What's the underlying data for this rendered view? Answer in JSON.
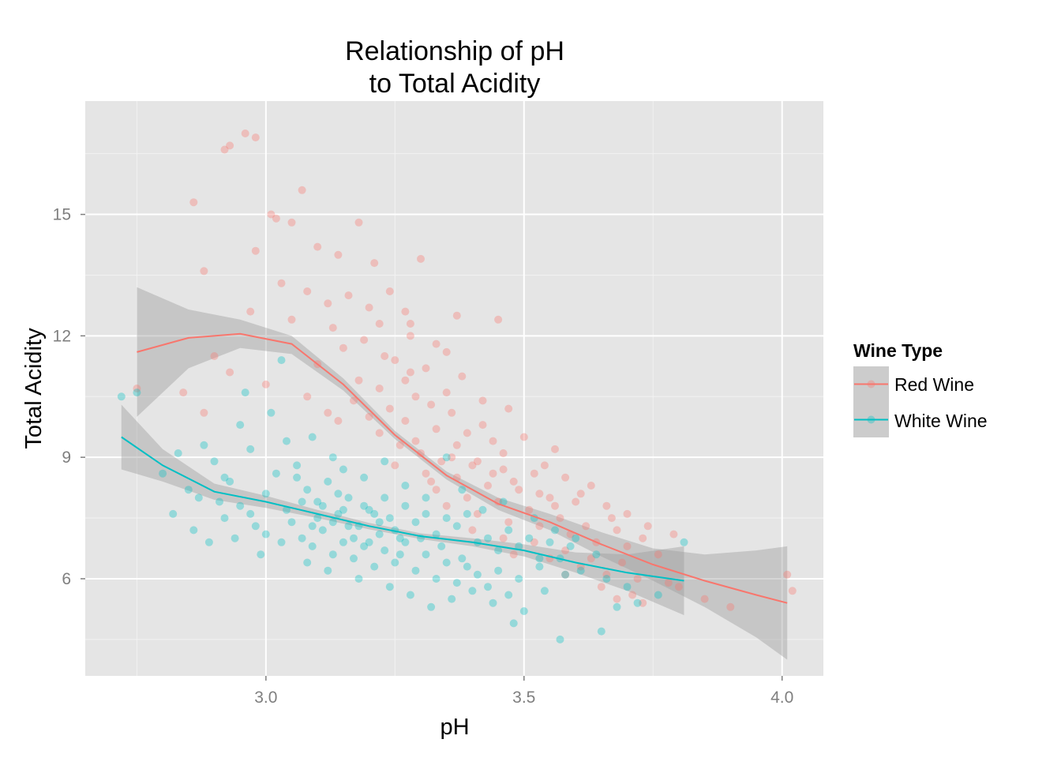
{
  "chart_data": {
    "type": "scatter",
    "title_lines": [
      "Relationship of pH",
      "to Total Acidity"
    ],
    "xlabel": "pH",
    "ylabel": "Total Acidity",
    "xlim": [
      2.65,
      4.08
    ],
    "ylim": [
      3.6,
      17.8
    ],
    "x_ticks": [
      {
        "value": 3.0,
        "label": "3.0"
      },
      {
        "value": 3.5,
        "label": "3.5"
      },
      {
        "value": 4.0,
        "label": "4.0"
      }
    ],
    "y_ticks": [
      {
        "value": 6,
        "label": "6"
      },
      {
        "value": 9,
        "label": "9"
      },
      {
        "value": 12,
        "label": "12"
      },
      {
        "value": 15,
        "label": "15"
      }
    ],
    "grid": true,
    "legend": {
      "title": "Wine Type",
      "position": "right"
    },
    "series": [
      {
        "name": "Red Wine",
        "color": "#F8766D",
        "smooth": {
          "x": [
            2.75,
            2.85,
            2.95,
            3.05,
            3.15,
            3.25,
            3.35,
            3.45,
            3.55,
            3.65,
            3.75,
            3.85,
            3.95,
            4.01
          ],
          "y": [
            11.6,
            11.95,
            12.05,
            11.8,
            10.8,
            9.55,
            8.55,
            7.85,
            7.4,
            6.85,
            6.35,
            5.95,
            5.6,
            5.4
          ],
          "lower": [
            10.0,
            11.2,
            11.7,
            11.55,
            10.65,
            9.45,
            8.45,
            7.7,
            7.2,
            6.55,
            5.95,
            5.3,
            4.55,
            4.0
          ],
          "upper": [
            13.2,
            12.65,
            12.4,
            12.0,
            10.95,
            9.65,
            8.65,
            8.0,
            7.6,
            7.15,
            6.75,
            6.6,
            6.7,
            6.8
          ]
        },
        "points": [
          [
            2.92,
            16.6
          ],
          [
            2.93,
            16.7
          ],
          [
            2.96,
            17.0
          ],
          [
            2.98,
            16.9
          ],
          [
            2.86,
            15.3
          ],
          [
            3.07,
            15.6
          ],
          [
            3.01,
            15.0
          ],
          [
            3.02,
            14.9
          ],
          [
            3.05,
            14.8
          ],
          [
            3.18,
            14.8
          ],
          [
            3.1,
            14.2
          ],
          [
            2.98,
            14.1
          ],
          [
            3.14,
            14.0
          ],
          [
            3.21,
            13.8
          ],
          [
            3.3,
            13.9
          ],
          [
            2.88,
            13.6
          ],
          [
            3.03,
            13.3
          ],
          [
            3.08,
            13.1
          ],
          [
            3.16,
            13.0
          ],
          [
            3.24,
            13.1
          ],
          [
            3.12,
            12.8
          ],
          [
            3.2,
            12.7
          ],
          [
            3.27,
            12.6
          ],
          [
            3.37,
            12.5
          ],
          [
            3.45,
            12.4
          ],
          [
            2.97,
            12.6
          ],
          [
            3.05,
            12.4
          ],
          [
            3.13,
            12.2
          ],
          [
            3.22,
            12.3
          ],
          [
            3.28,
            12.0
          ],
          [
            3.33,
            11.8
          ],
          [
            3.15,
            11.7
          ],
          [
            3.1,
            11.3
          ],
          [
            3.25,
            11.4
          ],
          [
            3.31,
            11.2
          ],
          [
            3.38,
            11.0
          ],
          [
            3.18,
            10.9
          ],
          [
            3.22,
            10.7
          ],
          [
            3.29,
            10.5
          ],
          [
            3.35,
            10.6
          ],
          [
            3.42,
            10.4
          ],
          [
            3.47,
            10.2
          ],
          [
            3.12,
            10.1
          ],
          [
            3.2,
            10.0
          ],
          [
            3.27,
            9.9
          ],
          [
            3.33,
            9.7
          ],
          [
            3.39,
            9.6
          ],
          [
            3.44,
            9.4
          ],
          [
            3.5,
            9.5
          ],
          [
            3.56,
            9.2
          ],
          [
            3.22,
            9.6
          ],
          [
            3.26,
            9.3
          ],
          [
            3.3,
            9.1
          ],
          [
            3.36,
            9.0
          ],
          [
            3.41,
            8.9
          ],
          [
            3.46,
            8.7
          ],
          [
            3.52,
            8.6
          ],
          [
            3.58,
            8.5
          ],
          [
            3.63,
            8.3
          ],
          [
            3.25,
            8.8
          ],
          [
            3.31,
            8.6
          ],
          [
            3.37,
            8.5
          ],
          [
            3.43,
            8.3
          ],
          [
            3.49,
            8.2
          ],
          [
            3.55,
            8.0
          ],
          [
            3.6,
            7.9
          ],
          [
            3.66,
            7.8
          ],
          [
            3.7,
            7.6
          ],
          [
            3.33,
            8.2
          ],
          [
            3.39,
            8.0
          ],
          [
            3.45,
            7.9
          ],
          [
            3.51,
            7.7
          ],
          [
            3.57,
            7.5
          ],
          [
            3.62,
            7.3
          ],
          [
            3.68,
            7.2
          ],
          [
            3.73,
            7.0
          ],
          [
            3.35,
            7.8
          ],
          [
            3.41,
            7.6
          ],
          [
            3.47,
            7.4
          ],
          [
            3.53,
            7.3
          ],
          [
            3.59,
            7.1
          ],
          [
            3.64,
            6.9
          ],
          [
            3.7,
            6.8
          ],
          [
            3.76,
            6.6
          ],
          [
            3.4,
            7.2
          ],
          [
            3.46,
            7.0
          ],
          [
            3.52,
            6.9
          ],
          [
            3.58,
            6.7
          ],
          [
            3.63,
            6.5
          ],
          [
            3.69,
            6.4
          ],
          [
            3.48,
            6.6
          ],
          [
            3.55,
            6.5
          ],
          [
            3.61,
            6.3
          ],
          [
            3.66,
            6.1
          ],
          [
            3.72,
            6.0
          ],
          [
            3.78,
            5.9
          ],
          [
            3.58,
            6.1
          ],
          [
            3.65,
            5.8
          ],
          [
            3.71,
            5.6
          ],
          [
            3.8,
            5.8
          ],
          [
            3.85,
            5.5
          ],
          [
            3.9,
            5.3
          ],
          [
            3.73,
            5.4
          ],
          [
            3.68,
            5.5
          ],
          [
            4.01,
            6.1
          ],
          [
            4.02,
            5.7
          ],
          [
            3.19,
            11.9
          ],
          [
            3.23,
            11.5
          ],
          [
            3.28,
            11.1
          ],
          [
            3.17,
            10.4
          ],
          [
            3.24,
            10.2
          ],
          [
            3.32,
            10.3
          ],
          [
            3.14,
            9.9
          ],
          [
            3.29,
            9.4
          ],
          [
            3.34,
            8.9
          ],
          [
            3.4,
            8.8
          ],
          [
            3.44,
            8.6
          ],
          [
            3.48,
            8.4
          ],
          [
            3.53,
            8.1
          ],
          [
            3.56,
            7.8
          ],
          [
            2.9,
            11.5
          ],
          [
            2.84,
            10.6
          ],
          [
            2.88,
            10.1
          ],
          [
            2.75,
            10.7
          ],
          [
            2.93,
            11.1
          ],
          [
            3.0,
            10.8
          ],
          [
            3.08,
            10.5
          ],
          [
            3.27,
            10.9
          ],
          [
            3.36,
            10.1
          ],
          [
            3.42,
            9.8
          ],
          [
            3.37,
            9.3
          ],
          [
            3.32,
            8.4
          ],
          [
            3.46,
            9.1
          ],
          [
            3.54,
            8.8
          ],
          [
            3.61,
            8.1
          ],
          [
            3.67,
            7.5
          ],
          [
            3.74,
            7.3
          ],
          [
            3.79,
            7.1
          ],
          [
            3.28,
            12.3
          ],
          [
            3.35,
            11.6
          ]
        ]
      },
      {
        "name": "White Wine",
        "color": "#00BFC4",
        "smooth": {
          "x": [
            2.72,
            2.8,
            2.9,
            3.0,
            3.1,
            3.2,
            3.3,
            3.4,
            3.5,
            3.6,
            3.7,
            3.81
          ],
          "y": [
            9.5,
            8.8,
            8.15,
            7.9,
            7.6,
            7.3,
            7.05,
            6.9,
            6.7,
            6.4,
            6.15,
            5.95
          ],
          "lower": [
            8.7,
            8.4,
            7.95,
            7.75,
            7.5,
            7.22,
            6.98,
            6.8,
            6.55,
            6.15,
            5.7,
            5.1
          ],
          "upper": [
            10.3,
            9.2,
            8.35,
            8.05,
            7.7,
            7.38,
            7.12,
            7.0,
            6.85,
            6.65,
            6.6,
            6.8
          ]
        },
        "points": [
          [
            2.72,
            10.5
          ],
          [
            2.75,
            10.6
          ],
          [
            2.8,
            8.6
          ],
          [
            2.83,
            9.1
          ],
          [
            2.85,
            8.2
          ],
          [
            2.88,
            9.3
          ],
          [
            2.9,
            8.9
          ],
          [
            2.92,
            8.5
          ],
          [
            2.95,
            9.8
          ],
          [
            2.97,
            9.2
          ],
          [
            2.82,
            7.6
          ],
          [
            2.86,
            7.2
          ],
          [
            2.89,
            6.9
          ],
          [
            2.92,
            7.5
          ],
          [
            2.95,
            7.8
          ],
          [
            2.98,
            7.3
          ],
          [
            3.0,
            8.1
          ],
          [
            3.02,
            8.6
          ],
          [
            3.04,
            9.4
          ],
          [
            3.06,
            8.8
          ],
          [
            3.08,
            8.2
          ],
          [
            3.1,
            7.9
          ],
          [
            3.12,
            8.4
          ],
          [
            3.14,
            7.6
          ],
          [
            3.16,
            8.0
          ],
          [
            3.18,
            7.3
          ],
          [
            3.2,
            7.7
          ],
          [
            3.22,
            7.1
          ],
          [
            3.24,
            7.5
          ],
          [
            3.26,
            7.0
          ],
          [
            3.05,
            7.4
          ],
          [
            3.07,
            7.0
          ],
          [
            3.09,
            6.8
          ],
          [
            3.11,
            7.2
          ],
          [
            3.13,
            6.6
          ],
          [
            3.15,
            6.9
          ],
          [
            3.17,
            6.5
          ],
          [
            3.19,
            6.8
          ],
          [
            3.21,
            6.3
          ],
          [
            3.23,
            6.7
          ],
          [
            3.25,
            6.4
          ],
          [
            3.27,
            6.9
          ],
          [
            3.29,
            6.2
          ],
          [
            3.31,
            6.6
          ],
          [
            3.33,
            6.0
          ],
          [
            3.35,
            6.4
          ],
          [
            3.37,
            5.9
          ],
          [
            3.39,
            6.3
          ],
          [
            3.41,
            6.1
          ],
          [
            3.43,
            5.8
          ],
          [
            3.45,
            6.2
          ],
          [
            3.47,
            5.6
          ],
          [
            3.49,
            6.0
          ],
          [
            3.5,
            5.2
          ],
          [
            3.54,
            5.7
          ],
          [
            3.57,
            4.5
          ],
          [
            3.65,
            4.7
          ],
          [
            3.68,
            5.3
          ],
          [
            3.72,
            5.4
          ],
          [
            3.76,
            5.6
          ],
          [
            3.81,
            6.9
          ],
          [
            2.96,
            10.6
          ],
          [
            3.01,
            10.1
          ],
          [
            3.03,
            11.4
          ],
          [
            3.09,
            9.5
          ],
          [
            3.13,
            9.0
          ],
          [
            3.15,
            8.7
          ],
          [
            3.19,
            8.5
          ],
          [
            3.23,
            8.9
          ],
          [
            3.27,
            8.3
          ],
          [
            3.31,
            8.0
          ],
          [
            3.35,
            9.0
          ],
          [
            3.38,
            8.2
          ],
          [
            3.42,
            7.7
          ],
          [
            3.46,
            7.9
          ],
          [
            3.52,
            7.5
          ],
          [
            3.56,
            7.2
          ],
          [
            3.6,
            7.0
          ],
          [
            3.64,
            6.6
          ],
          [
            2.94,
            7.0
          ],
          [
            2.99,
            6.6
          ],
          [
            3.03,
            6.9
          ],
          [
            3.08,
            6.4
          ],
          [
            3.12,
            6.2
          ],
          [
            3.18,
            6.0
          ],
          [
            3.24,
            5.8
          ],
          [
            3.28,
            5.6
          ],
          [
            3.32,
            5.3
          ],
          [
            3.36,
            5.5
          ],
          [
            3.4,
            5.7
          ],
          [
            3.44,
            5.4
          ],
          [
            3.48,
            4.9
          ],
          [
            3.53,
            6.5
          ],
          [
            3.58,
            6.1
          ],
          [
            2.87,
            8.0
          ],
          [
            2.91,
            7.9
          ],
          [
            2.93,
            8.4
          ],
          [
            2.97,
            7.6
          ],
          [
            3.0,
            7.1
          ],
          [
            3.04,
            7.7
          ],
          [
            3.06,
            8.5
          ],
          [
            3.1,
            7.5
          ],
          [
            3.14,
            8.1
          ],
          [
            3.16,
            7.3
          ],
          [
            3.2,
            6.9
          ],
          [
            3.22,
            7.4
          ],
          [
            3.26,
            6.6
          ],
          [
            3.3,
            7.0
          ],
          [
            3.34,
            6.8
          ],
          [
            3.38,
            6.5
          ],
          [
            3.11,
            7.8
          ],
          [
            3.13,
            7.4
          ],
          [
            3.17,
            7.0
          ],
          [
            3.21,
            7.6
          ],
          [
            3.25,
            7.2
          ],
          [
            3.29,
            7.4
          ],
          [
            3.33,
            7.1
          ],
          [
            3.37,
            7.3
          ],
          [
            3.41,
            6.9
          ],
          [
            3.45,
            6.7
          ],
          [
            3.49,
            6.8
          ],
          [
            3.53,
            6.3
          ],
          [
            3.57,
            6.5
          ],
          [
            3.61,
            6.2
          ],
          [
            3.66,
            6.0
          ],
          [
            3.7,
            5.8
          ],
          [
            3.07,
            7.9
          ],
          [
            3.09,
            7.3
          ],
          [
            3.15,
            7.7
          ],
          [
            3.19,
            7.8
          ],
          [
            3.23,
            8.0
          ],
          [
            3.27,
            7.8
          ],
          [
            3.31,
            7.6
          ],
          [
            3.35,
            7.5
          ],
          [
            3.39,
            7.6
          ],
          [
            3.43,
            7.0
          ],
          [
            3.47,
            7.2
          ],
          [
            3.51,
            7.0
          ],
          [
            3.55,
            6.9
          ],
          [
            3.59,
            6.8
          ]
        ]
      }
    ]
  }
}
